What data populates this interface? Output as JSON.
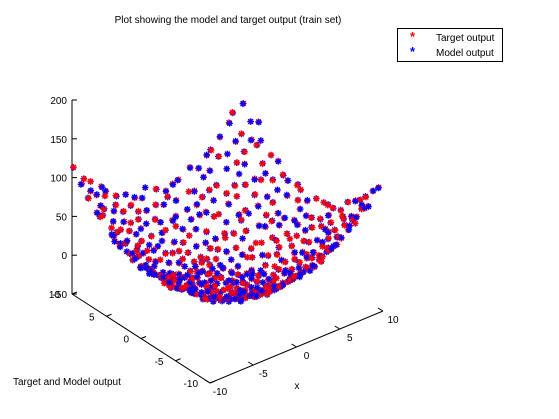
{
  "chart_data": {
    "type": "scatter",
    "title": "Plot showing the model and target output (train set)",
    "xlabel": "x",
    "ylabel": "",
    "zlabel": "Target and Model output",
    "x_ticks": [
      "-10",
      "-5",
      "0",
      "5",
      "10"
    ],
    "y_ticks": [
      "-10",
      "-5",
      "0",
      "5",
      "10"
    ],
    "z_ticks": [
      "-50",
      "0",
      "50",
      "100",
      "150",
      "200"
    ],
    "xlim": [
      -10,
      10
    ],
    "ylim": [
      -10,
      10
    ],
    "zlim": [
      -50,
      200
    ],
    "grid": false,
    "legend": {
      "position": "top-right"
    },
    "surface_relation": "approximately x^2 + y^2 - 25 sampled on a grid over [-10,10] x [-10,10]",
    "series": [
      {
        "name": "Target output",
        "color": "#ff0000",
        "marker": "*"
      },
      {
        "name": "Model output",
        "color": "#0000ff",
        "marker": "*"
      }
    ]
  }
}
